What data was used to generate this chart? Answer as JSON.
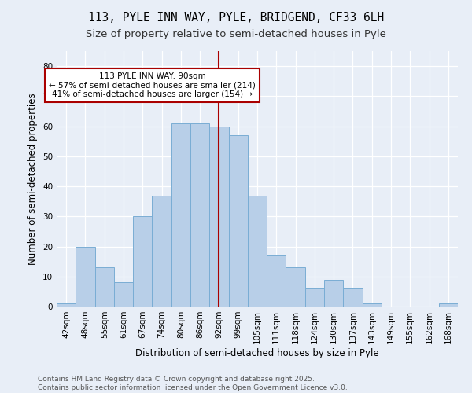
{
  "title": "113, PYLE INN WAY, PYLE, BRIDGEND, CF33 6LH",
  "subtitle": "Size of property relative to semi-detached houses in Pyle",
  "xlabel": "Distribution of semi-detached houses by size in Pyle",
  "ylabel": "Number of semi-detached properties",
  "categories": [
    "42sqm",
    "48sqm",
    "55sqm",
    "61sqm",
    "67sqm",
    "74sqm",
    "80sqm",
    "86sqm",
    "92sqm",
    "99sqm",
    "105sqm",
    "111sqm",
    "118sqm",
    "124sqm",
    "130sqm",
    "137sqm",
    "143sqm",
    "149sqm",
    "155sqm",
    "162sqm",
    "168sqm"
  ],
  "values": [
    1,
    20,
    13,
    8,
    30,
    37,
    61,
    61,
    60,
    57,
    37,
    17,
    13,
    6,
    9,
    6,
    1,
    0,
    0,
    0,
    1
  ],
  "bar_color": "#b8cfe8",
  "bar_edge_color": "#7aadd4",
  "vline_x_index": 8,
  "vline_color": "#aa0000",
  "annotation_text": "113 PYLE INN WAY: 90sqm\n← 57% of semi-detached houses are smaller (214)\n41% of semi-detached houses are larger (154) →",
  "annotation_box_color": "#ffffff",
  "annotation_box_edge": "#aa0000",
  "footer_text": "Contains HM Land Registry data © Crown copyright and database right 2025.\nContains public sector information licensed under the Open Government Licence v3.0.",
  "ylim": [
    0,
    85
  ],
  "background_color": "#e8eef7",
  "grid_color": "#ffffff",
  "title_fontsize": 10.5,
  "subtitle_fontsize": 9.5,
  "axis_label_fontsize": 8.5,
  "tick_fontsize": 7.5,
  "footer_fontsize": 6.5,
  "annotation_fontsize": 7.5
}
